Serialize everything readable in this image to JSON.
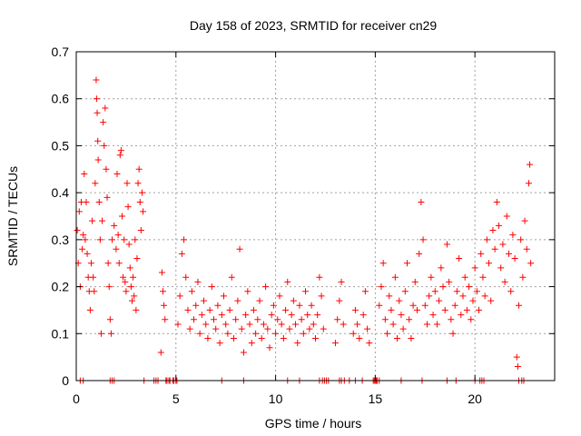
{
  "chart_data": {
    "type": "scatter",
    "title": "Day 158 of 2023, SRMTID for receiver cn29",
    "xlabel": "GPS time / hours",
    "ylabel": "SRMTID / TECUs",
    "xlim": [
      0,
      24
    ],
    "ylim": [
      0,
      0.7
    ],
    "xticks": [
      "0",
      "5",
      "10",
      "15",
      "20"
    ],
    "yticks": [
      "0",
      "0.1",
      "0.2",
      "0.3",
      "0.4",
      "0.5",
      "0.6",
      "0.7"
    ],
    "grid": true,
    "marker": "+",
    "series": [
      {
        "name": "SRMTID",
        "color": "#ff0000",
        "points": [
          [
            0.05,
            0.32
          ],
          [
            0.1,
            0.25
          ],
          [
            0.15,
            0.36
          ],
          [
            0.2,
            0.2
          ],
          [
            0.25,
            0.38
          ],
          [
            0.3,
            0.28
          ],
          [
            0.35,
            0.31
          ],
          [
            0.4,
            0.44
          ],
          [
            0.45,
            0.3
          ],
          [
            0.5,
            0.38
          ],
          [
            0.55,
            0.27
          ],
          [
            0.6,
            0.22
          ],
          [
            0.65,
            0.19
          ],
          [
            0.7,
            0.15
          ],
          [
            0.75,
            0.25
          ],
          [
            0.8,
            0.34
          ],
          [
            0.85,
            0.22
          ],
          [
            0.9,
            0.19
          ],
          [
            0.95,
            0.42
          ],
          [
            1.0,
            0.64
          ],
          [
            1.02,
            0.6
          ],
          [
            1.05,
            0.57
          ],
          [
            1.08,
            0.51
          ],
          [
            1.1,
            0.47
          ],
          [
            1.15,
            0.38
          ],
          [
            1.2,
            0.3
          ],
          [
            1.25,
            0.1
          ],
          [
            1.3,
            0.34
          ],
          [
            1.35,
            0.55
          ],
          [
            1.4,
            0.5
          ],
          [
            1.45,
            0.58
          ],
          [
            1.5,
            0.45
          ],
          [
            1.55,
            0.39
          ],
          [
            1.6,
            0.25
          ],
          [
            1.65,
            0.2
          ],
          [
            1.7,
            0.13
          ],
          [
            1.75,
            0.1
          ],
          [
            1.8,
            0.3
          ],
          [
            1.9,
            0.33
          ],
          [
            2.0,
            0.28
          ],
          [
            2.05,
            0.44
          ],
          [
            2.1,
            0.31
          ],
          [
            2.15,
            0.25
          ],
          [
            2.2,
            0.48
          ],
          [
            2.25,
            0.49
          ],
          [
            2.3,
            0.35
          ],
          [
            2.35,
            0.22
          ],
          [
            2.4,
            0.3
          ],
          [
            2.45,
            0.21
          ],
          [
            2.5,
            0.19
          ],
          [
            2.55,
            0.42
          ],
          [
            2.6,
            0.37
          ],
          [
            2.65,
            0.29
          ],
          [
            2.7,
            0.24
          ],
          [
            2.75,
            0.2
          ],
          [
            2.8,
            0.17
          ],
          [
            2.85,
            0.22
          ],
          [
            2.9,
            0.18
          ],
          [
            2.95,
            0.3
          ],
          [
            3.0,
            0.15
          ],
          [
            3.05,
            0.26
          ],
          [
            3.1,
            0.42
          ],
          [
            3.15,
            0.45
          ],
          [
            3.2,
            0.38
          ],
          [
            3.25,
            0.32
          ],
          [
            3.3,
            0.4
          ],
          [
            3.35,
            0.36
          ],
          [
            4.3,
            0.23
          ],
          [
            4.35,
            0.19
          ],
          [
            4.4,
            0.16
          ],
          [
            4.45,
            0.13
          ],
          [
            4.25,
            0.06
          ],
          [
            5.1,
            0.12
          ],
          [
            5.2,
            0.18
          ],
          [
            5.3,
            0.27
          ],
          [
            5.4,
            0.3
          ],
          [
            5.5,
            0.22
          ],
          [
            5.6,
            0.15
          ],
          [
            5.7,
            0.11
          ],
          [
            5.8,
            0.19
          ],
          [
            5.9,
            0.13
          ],
          [
            6.0,
            0.16
          ],
          [
            6.1,
            0.21
          ],
          [
            6.2,
            0.1
          ],
          [
            6.3,
            0.14
          ],
          [
            6.4,
            0.17
          ],
          [
            6.5,
            0.12
          ],
          [
            6.6,
            0.09
          ],
          [
            6.7,
            0.15
          ],
          [
            6.8,
            0.2
          ],
          [
            6.9,
            0.13
          ],
          [
            7.0,
            0.11
          ],
          [
            7.1,
            0.16
          ],
          [
            7.2,
            0.08
          ],
          [
            7.3,
            0.14
          ],
          [
            7.4,
            0.18
          ],
          [
            7.5,
            0.12
          ],
          [
            7.6,
            0.1
          ],
          [
            7.7,
            0.15
          ],
          [
            7.8,
            0.22
          ],
          [
            7.9,
            0.09
          ],
          [
            8.0,
            0.13
          ],
          [
            8.1,
            0.17
          ],
          [
            8.2,
            0.28
          ],
          [
            8.3,
            0.11
          ],
          [
            8.4,
            0.06
          ],
          [
            8.5,
            0.14
          ],
          [
            8.6,
            0.19
          ],
          [
            8.7,
            0.12
          ],
          [
            8.8,
            0.08
          ],
          [
            8.9,
            0.15
          ],
          [
            9.0,
            0.1
          ],
          [
            9.1,
            0.13
          ],
          [
            9.2,
            0.17
          ],
          [
            9.3,
            0.09
          ],
          [
            9.4,
            0.12
          ],
          [
            9.5,
            0.2
          ],
          [
            9.6,
            0.11
          ],
          [
            9.7,
            0.07
          ],
          [
            9.8,
            0.14
          ],
          [
            9.9,
            0.16
          ],
          [
            10.0,
            0.1
          ],
          [
            10.1,
            0.13
          ],
          [
            10.2,
            0.18
          ],
          [
            10.3,
            0.12
          ],
          [
            10.4,
            0.09
          ],
          [
            10.5,
            0.15
          ],
          [
            10.6,
            0.21
          ],
          [
            10.7,
            0.11
          ],
          [
            10.8,
            0.14
          ],
          [
            10.9,
            0.17
          ],
          [
            11.0,
            0.12
          ],
          [
            11.1,
            0.08
          ],
          [
            11.2,
            0.16
          ],
          [
            11.3,
            0.13
          ],
          [
            11.4,
            0.1
          ],
          [
            11.5,
            0.19
          ],
          [
            11.6,
            0.14
          ],
          [
            11.7,
            0.11
          ],
          [
            11.8,
            0.16
          ],
          [
            11.9,
            0.12
          ],
          [
            12.0,
            0.09
          ],
          [
            12.1,
            0.14
          ],
          [
            12.2,
            0.22
          ],
          [
            12.3,
            0.18
          ],
          [
            12.4,
            0.11
          ],
          [
            13.0,
            0.08
          ],
          [
            13.1,
            0.13
          ],
          [
            13.2,
            0.17
          ],
          [
            13.3,
            0.21
          ],
          [
            13.4,
            0.12
          ],
          [
            13.9,
            0.1
          ],
          [
            14.0,
            0.15
          ],
          [
            14.1,
            0.12
          ],
          [
            14.2,
            0.09
          ],
          [
            14.4,
            0.14
          ],
          [
            14.5,
            0.19
          ],
          [
            14.6,
            0.11
          ],
          [
            14.7,
            0.08
          ],
          [
            15.2,
            0.16
          ],
          [
            15.3,
            0.2
          ],
          [
            15.4,
            0.25
          ],
          [
            15.5,
            0.13
          ],
          [
            15.6,
            0.1
          ],
          [
            15.7,
            0.18
          ],
          [
            15.8,
            0.15
          ],
          [
            15.9,
            0.12
          ],
          [
            16.0,
            0.22
          ],
          [
            16.1,
            0.09
          ],
          [
            16.2,
            0.17
          ],
          [
            16.3,
            0.14
          ],
          [
            16.4,
            0.11
          ],
          [
            16.5,
            0.19
          ],
          [
            16.6,
            0.25
          ],
          [
            16.7,
            0.13
          ],
          [
            16.8,
            0.09
          ],
          [
            16.9,
            0.16
          ],
          [
            17.0,
            0.21
          ],
          [
            17.1,
            0.15
          ],
          [
            17.2,
            0.27
          ],
          [
            17.3,
            0.38
          ],
          [
            17.4,
            0.3
          ],
          [
            17.5,
            0.16
          ],
          [
            17.6,
            0.12
          ],
          [
            17.7,
            0.18
          ],
          [
            17.8,
            0.22
          ],
          [
            17.9,
            0.14
          ],
          [
            18.0,
            0.19
          ],
          [
            18.1,
            0.12
          ],
          [
            18.2,
            0.17
          ],
          [
            18.3,
            0.24
          ],
          [
            18.4,
            0.2
          ],
          [
            18.5,
            0.15
          ],
          [
            18.6,
            0.29
          ],
          [
            18.7,
            0.21
          ],
          [
            18.8,
            0.13
          ],
          [
            18.9,
            0.1
          ],
          [
            19.0,
            0.16
          ],
          [
            19.1,
            0.19
          ],
          [
            19.2,
            0.26
          ],
          [
            19.3,
            0.14
          ],
          [
            19.4,
            0.18
          ],
          [
            19.5,
            0.22
          ],
          [
            19.6,
            0.15
          ],
          [
            19.7,
            0.2
          ],
          [
            19.8,
            0.13
          ],
          [
            19.9,
            0.17
          ],
          [
            20.0,
            0.24
          ],
          [
            20.1,
            0.19
          ],
          [
            20.2,
            0.15
          ],
          [
            20.3,
            0.27
          ],
          [
            20.4,
            0.22
          ],
          [
            20.5,
            0.18
          ],
          [
            20.6,
            0.3
          ],
          [
            20.7,
            0.25
          ],
          [
            20.8,
            0.17
          ],
          [
            20.9,
            0.32
          ],
          [
            21.0,
            0.28
          ],
          [
            21.1,
            0.38
          ],
          [
            21.2,
            0.33
          ],
          [
            21.3,
            0.24
          ],
          [
            21.4,
            0.29
          ],
          [
            21.5,
            0.21
          ],
          [
            21.6,
            0.35
          ],
          [
            21.7,
            0.27
          ],
          [
            21.8,
            0.19
          ],
          [
            21.9,
            0.31
          ],
          [
            22.0,
            0.26
          ],
          [
            22.1,
            0.05
          ],
          [
            22.15,
            0.03
          ],
          [
            22.2,
            0.16
          ],
          [
            22.3,
            0.3
          ],
          [
            22.4,
            0.22
          ],
          [
            22.5,
            0.34
          ],
          [
            22.6,
            0.28
          ],
          [
            22.7,
            0.42
          ],
          [
            22.75,
            0.46
          ],
          [
            22.8,
            0.25
          ]
        ]
      }
    ],
    "zero_points_x": [
      0.2,
      0.35,
      1.7,
      1.8,
      1.9,
      3.4,
      3.9,
      4.0,
      4.1,
      4.5,
      4.55,
      4.65,
      4.7,
      4.85,
      4.9,
      5.0,
      5.05,
      7.3,
      8.4,
      10.6,
      11.2,
      12.2,
      12.35,
      12.45,
      12.55,
      12.65,
      13.2,
      13.3,
      13.45,
      13.7,
      14.0,
      14.35,
      14.9,
      14.95,
      15.0,
      15.05,
      15.1,
      15.2,
      16.3,
      17.35,
      18.6,
      19.05,
      20.0,
      20.25,
      20.35,
      20.45,
      22.2,
      22.35,
      22.45
    ]
  }
}
